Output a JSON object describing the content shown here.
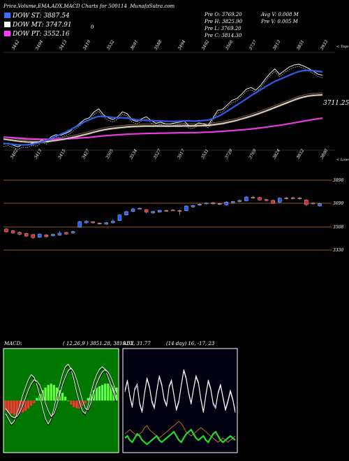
{
  "header": {
    "title": "Price,Volume,EMA,ADX,MACD Charts for 500114",
    "site": "MunafaSutra.com"
  },
  "legend": [
    {
      "label": "DOW ST: ",
      "value": "3887.54",
      "color": "#3d6cff"
    },
    {
      "label": "DOW MT: ",
      "value": "3747.91",
      "color": "#ffffff"
    },
    {
      "label": "DOW PT: ",
      "value": "3552.16",
      "color": "#ff3dff"
    }
  ],
  "legend_zero": "0",
  "quotes": {
    "prev_o": "Pre   O: 3769.20",
    "prev_h": "Pre   H: 3825.90",
    "prev_l": "Pre   L: 3769.20",
    "prev_c": "Pre   C: 3814.30",
    "avg_v": "Avg V: 0.008 M",
    "prev_v": "Pre   V: 0.005 M"
  },
  "colors": {
    "up": "#1e60ff",
    "down": "#e0252a",
    "ema_st": "#2e5de8",
    "ema_pt": "#e83adf",
    "adx_green": "#22dd22",
    "adx_orange": "#d47a1a"
  },
  "chart_data": [
    {
      "type": "line",
      "name": "ema-panel",
      "top_tick_labels": [
        "3442",
        "3494",
        "3413",
        "3419",
        "3532",
        "3691",
        "3588",
        "3494",
        "3492",
        "3566",
        "3737",
        "3813",
        "3851",
        "3933"
      ],
      "bottom_tick_labels": [
        "3402",
        "3413",
        "3415",
        "3427",
        "3505",
        "3534",
        "3527",
        "3517",
        "3531",
        "3729",
        "3769",
        "3824",
        "3832",
        "3890"
      ],
      "right_top_label": "< Tops",
      "right_bottom_label": "< Lows",
      "last_price_label": "3711.25",
      "price": [
        3455,
        3462,
        3450,
        3440,
        3452,
        3448,
        3462,
        3458,
        3480,
        3470,
        3500,
        3512,
        3508,
        3520,
        3532,
        3558,
        3578,
        3602,
        3612,
        3646,
        3665,
        3630,
        3612,
        3602,
        3618,
        3648,
        3636,
        3600,
        3590,
        3606,
        3618,
        3596,
        3580,
        3586,
        3576,
        3575,
        3582,
        3586,
        3592,
        3562,
        3565,
        3582,
        3576,
        3568,
        3612,
        3656,
        3662,
        3688,
        3716,
        3726,
        3752,
        3782,
        3792,
        3776,
        3804,
        3842,
        3876,
        3902,
        3870,
        3892,
        3913,
        3925,
        3930,
        3920,
        3906,
        3890,
        3872,
        3864
      ],
      "series_scale": [
        3420,
        4000
      ],
      "series": [
        {
          "name": "DOW ST",
          "values": [
            3460,
            3458,
            3455,
            3452,
            3451,
            3452,
            3455,
            3460,
            3468,
            3478,
            3490,
            3502,
            3514,
            3526,
            3540,
            3556,
            3572,
            3588,
            3600,
            3612,
            3620,
            3620,
            3617,
            3614,
            3612,
            3612,
            3610,
            3605,
            3600,
            3598,
            3597,
            3596,
            3594,
            3593,
            3592,
            3591,
            3591,
            3592,
            3594,
            3593,
            3592,
            3594,
            3596,
            3598,
            3608,
            3620,
            3634,
            3652,
            3670,
            3688,
            3706,
            3724,
            3744,
            3760,
            3778,
            3796,
            3812,
            3828,
            3840,
            3852,
            3864,
            3876,
            3886,
            3892,
            3894,
            3892,
            3888,
            3884
          ]
        },
        {
          "name": "DOW MT",
          "values": [
            3486,
            3482,
            3478,
            3474,
            3471,
            3469,
            3468,
            3468,
            3469,
            3471,
            3474,
            3478,
            3482,
            3487,
            3492,
            3498,
            3505,
            3512,
            3519,
            3527,
            3534,
            3540,
            3545,
            3549,
            3552,
            3555,
            3558,
            3560,
            3561,
            3562,
            3563,
            3563,
            3563,
            3563,
            3563,
            3563,
            3563,
            3563,
            3564,
            3564,
            3564,
            3565,
            3566,
            3567,
            3570,
            3574,
            3578,
            3584,
            3590,
            3597,
            3605,
            3613,
            3622,
            3631,
            3641,
            3651,
            3662,
            3673,
            3684,
            3695,
            3706,
            3717,
            3727,
            3735,
            3741,
            3745,
            3747,
            3748
          ]
        },
        {
          "name": "DOW PT",
          "values": [
            3498,
            3496,
            3494,
            3492,
            3490,
            3488,
            3487,
            3486,
            3485,
            3485,
            3485,
            3485,
            3486,
            3487,
            3488,
            3490,
            3492,
            3494,
            3496,
            3499,
            3502,
            3505,
            3507,
            3509,
            3511,
            3513,
            3515,
            3516,
            3517,
            3518,
            3519,
            3520,
            3520,
            3521,
            3521,
            3522,
            3522,
            3523,
            3523,
            3524,
            3524,
            3525,
            3526,
            3527,
            3528,
            3530,
            3532,
            3534,
            3536,
            3538,
            3540,
            3543,
            3546,
            3549,
            3552,
            3556,
            3560,
            3564,
            3568,
            3572,
            3577,
            3582,
            3587,
            3592,
            3597,
            3602,
            3606,
            3610
          ]
        }
      ]
    },
    {
      "type": "candlestick",
      "name": "price-panel",
      "right_labels": [
        "3898",
        "3699",
        "3508",
        "3330"
      ],
      "ylim": [
        3330,
        3990
      ],
      "candles": [
        {
          "o": 3555,
          "c": 3530,
          "h": 3562,
          "l": 3520
        },
        {
          "o": 3540,
          "c": 3520,
          "h": 3548,
          "l": 3512
        },
        {
          "o": 3525,
          "c": 3508,
          "h": 3534,
          "l": 3500
        },
        {
          "o": 3515,
          "c": 3492,
          "h": 3522,
          "l": 3485
        },
        {
          "o": 3505,
          "c": 3478,
          "h": 3512,
          "l": 3470
        },
        {
          "o": 3482,
          "c": 3510,
          "h": 3516,
          "l": 3476
        },
        {
          "o": 3502,
          "c": 3486,
          "h": 3510,
          "l": 3480
        },
        {
          "o": 3495,
          "c": 3508,
          "h": 3514,
          "l": 3488
        },
        {
          "o": 3500,
          "c": 3518,
          "h": 3535,
          "l": 3494
        },
        {
          "o": 3524,
          "c": 3510,
          "h": 3530,
          "l": 3502
        },
        {
          "o": 3520,
          "c": 3532,
          "h": 3540,
          "l": 3514
        },
        {
          "o": 3572,
          "c": 3620,
          "h": 3628,
          "l": 3565
        },
        {
          "o": 3610,
          "c": 3625,
          "h": 3632,
          "l": 3602
        },
        {
          "o": 3620,
          "c": 3610,
          "h": 3626,
          "l": 3604
        },
        {
          "o": 3608,
          "c": 3600,
          "h": 3614,
          "l": 3596
        },
        {
          "o": 3598,
          "c": 3612,
          "h": 3616,
          "l": 3592
        },
        {
          "o": 3610,
          "c": 3625,
          "h": 3640,
          "l": 3604
        },
        {
          "o": 3630,
          "c": 3680,
          "h": 3686,
          "l": 3625
        },
        {
          "o": 3680,
          "c": 3710,
          "h": 3716,
          "l": 3674
        },
        {
          "o": 3712,
          "c": 3735,
          "h": 3742,
          "l": 3706
        },
        {
          "o": 3736,
          "c": 3740,
          "h": 3748,
          "l": 3730
        },
        {
          "o": 3728,
          "c": 3705,
          "h": 3732,
          "l": 3696
        },
        {
          "o": 3698,
          "c": 3712,
          "h": 3718,
          "l": 3690
        },
        {
          "o": 3706,
          "c": 3722,
          "h": 3726,
          "l": 3700
        },
        {
          "o": 3720,
          "c": 3715,
          "h": 3728,
          "l": 3710
        },
        {
          "o": 3724,
          "c": 3721,
          "h": 3732,
          "l": 3716
        },
        {
          "o": 3720,
          "c": 3717,
          "h": 3726,
          "l": 3680
        },
        {
          "o": 3718,
          "c": 3760,
          "h": 3766,
          "l": 3712
        },
        {
          "o": 3752,
          "c": 3764,
          "h": 3770,
          "l": 3746
        },
        {
          "o": 3768,
          "c": 3776,
          "h": 3782,
          "l": 3762
        },
        {
          "o": 3782,
          "c": 3786,
          "h": 3792,
          "l": 3776
        },
        {
          "o": 3790,
          "c": 3780,
          "h": 3796,
          "l": 3772
        },
        {
          "o": 3782,
          "c": 3774,
          "h": 3788,
          "l": 3768
        },
        {
          "o": 3770,
          "c": 3795,
          "h": 3802,
          "l": 3766
        },
        {
          "o": 3790,
          "c": 3800,
          "h": 3806,
          "l": 3784
        },
        {
          "o": 3798,
          "c": 3810,
          "h": 3816,
          "l": 3792
        },
        {
          "o": 3806,
          "c": 3840,
          "h": 3850,
          "l": 3800
        },
        {
          "o": 3838,
          "c": 3832,
          "h": 3848,
          "l": 3826
        },
        {
          "o": 3836,
          "c": 3814,
          "h": 3842,
          "l": 3808
        },
        {
          "o": 3818,
          "c": 3808,
          "h": 3824,
          "l": 3800
        },
        {
          "o": 3810,
          "c": 3784,
          "h": 3816,
          "l": 3778
        },
        {
          "o": 3794,
          "c": 3830,
          "h": 3836,
          "l": 3788
        },
        {
          "o": 3832,
          "c": 3826,
          "h": 3840,
          "l": 3820
        },
        {
          "o": 3834,
          "c": 3826,
          "h": 3842,
          "l": 3820
        },
        {
          "o": 3832,
          "c": 3825,
          "h": 3840,
          "l": 3818
        },
        {
          "o": 3814,
          "c": 3772,
          "h": 3820,
          "l": 3760
        },
        {
          "o": 3786,
          "c": 3780,
          "h": 3792,
          "l": 3774
        },
        {
          "o": 3760,
          "c": 3780,
          "h": 3786,
          "l": 3754
        }
      ]
    },
    {
      "type": "line",
      "name": "macd-panel",
      "label": "MACD:",
      "values_text": "( 12,26,9 )  3851.28,  3819.52,  31.77",
      "hist": [
        -8,
        -9,
        -10,
        -11,
        -11,
        -10,
        -9,
        -8,
        -6,
        -4,
        -2,
        2,
        5,
        8,
        10,
        12,
        13,
        12,
        10,
        8,
        6,
        3,
        0,
        -3,
        -5,
        -6,
        -6,
        -4,
        -2,
        2,
        5,
        8,
        10,
        11,
        12,
        13,
        13,
        12,
        11,
        10
      ],
      "macd": [
        -10,
        -14,
        -18,
        -16,
        -10,
        -4,
        4,
        10,
        16,
        20,
        18,
        12,
        4,
        -6,
        -14,
        -18,
        -14,
        -6,
        4,
        12,
        20,
        26,
        28,
        24,
        16,
        6,
        -2,
        -8,
        -10,
        -4,
        6,
        14,
        20,
        24,
        26,
        24,
        18,
        12,
        6,
        0
      ],
      "signal": [
        -6,
        -9,
        -12,
        -13,
        -12,
        -9,
        -4,
        2,
        8,
        13,
        16,
        15,
        12,
        6,
        -2,
        -8,
        -12,
        -10,
        -4,
        4,
        12,
        18,
        23,
        25,
        22,
        16,
        8,
        0,
        -6,
        -7,
        -2,
        6,
        13,
        18,
        22,
        24,
        22,
        18,
        12,
        6
      ],
      "ylim": [
        -40,
        40
      ]
    },
    {
      "type": "line",
      "name": "adx-panel",
      "label": "ADX",
      "values_text": "(14 day)  16,  -17,  23",
      "di_white": [
        60,
        70,
        55,
        45,
        62,
        66,
        48,
        40,
        58,
        72,
        64,
        50,
        44,
        60,
        74,
        66,
        52,
        46,
        64,
        70,
        56,
        42,
        50,
        66,
        80,
        72,
        58,
        48,
        62,
        74,
        68,
        52,
        40,
        56,
        70,
        62,
        48,
        44,
        58,
        66,
        54,
        42,
        50,
        60,
        52,
        40
      ],
      "adx_green": [
        14,
        16,
        12,
        10,
        14,
        18,
        16,
        12,
        10,
        8,
        10,
        12,
        14,
        16,
        12,
        10,
        12,
        14,
        16,
        18,
        20,
        16,
        12,
        10,
        14,
        18,
        20,
        22,
        18,
        14,
        12,
        14,
        16,
        12,
        10,
        14,
        18,
        20,
        16,
        12,
        10,
        12,
        14,
        16,
        14,
        12
      ],
      "adx_orange": [
        18,
        20,
        22,
        20,
        18,
        16,
        18,
        20,
        24,
        26,
        22,
        20,
        18,
        16,
        14,
        16,
        18,
        20,
        22,
        24,
        26,
        28,
        30,
        28,
        24,
        20,
        18,
        16,
        18,
        20,
        22,
        24,
        22,
        20,
        18,
        16,
        14,
        12,
        10,
        12,
        14,
        12,
        10,
        12,
        14,
        16
      ],
      "ylim": [
        0,
        100
      ]
    }
  ]
}
